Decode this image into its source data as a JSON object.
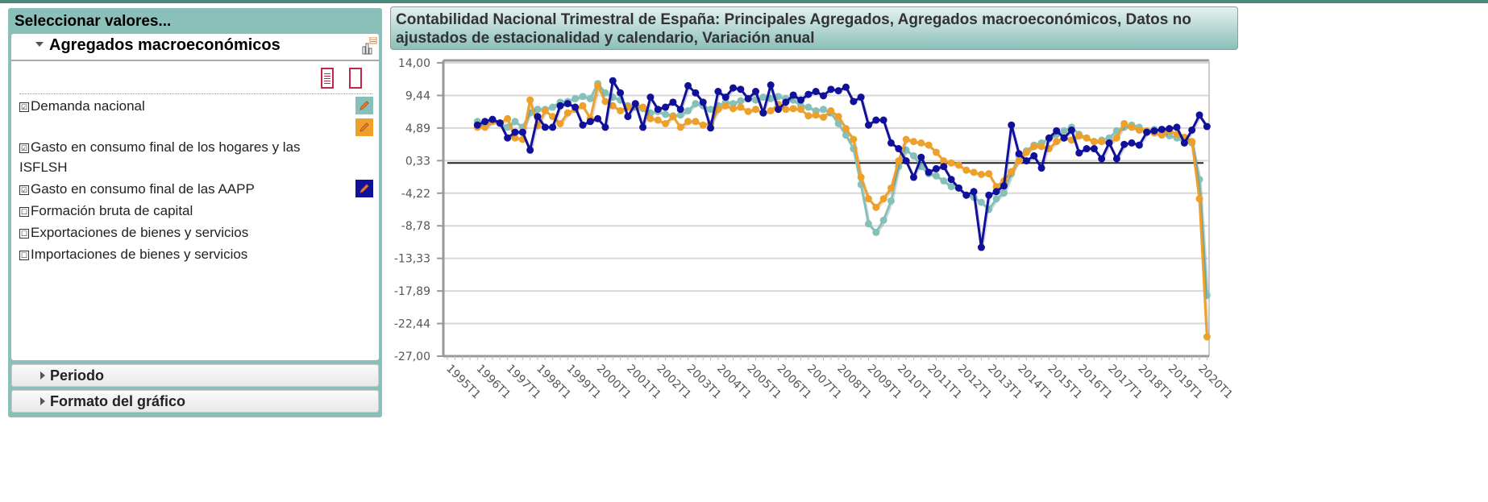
{
  "left_panel": {
    "title": "Seleccionar valores...",
    "accordion_label": "Agregados macroeconómicos",
    "items": [
      {
        "label": "Demanda nacional",
        "checked": true,
        "check": "☑",
        "color": "#86c0ba"
      },
      {
        "label": "Gasto en consumo final de los hogares y las ISFLSH",
        "checked": true,
        "check": "☑",
        "color": "#eda12b"
      },
      {
        "label": "Gasto en consumo final de las AAPP",
        "checked": true,
        "check": "☑",
        "color": "#10109a"
      },
      {
        "label": "Formación bruta de capital",
        "checked": false,
        "check": "☐"
      },
      {
        "label": "Exportaciones de bienes y servicios",
        "checked": false,
        "check": "☐"
      },
      {
        "label": "Importaciones de bienes y servicios",
        "checked": false,
        "check": "☐"
      }
    ],
    "sections": [
      {
        "label": "Periodo"
      },
      {
        "label": "Formato del gráfico"
      }
    ]
  },
  "chart_data": {
    "type": "line",
    "title": "Contabilidad Nacional Trimestral de España: Principales Agregados, Agregados macroeconómicos, Datos no ajustados de estacionalidad y calendario, Variación anual",
    "ylim": [
      -27.0,
      14.0
    ],
    "yticks": [
      "14,00",
      "9,44",
      "4,89",
      "0,33",
      "-4,22",
      "-8,78",
      "-13,33",
      "-17,89",
      "-22,44",
      "-27,00"
    ],
    "ytick_values": [
      14.0,
      9.44,
      4.89,
      0.33,
      -4.22,
      -8.78,
      -13.33,
      -17.89,
      -22.44,
      -27.0
    ],
    "xticks": [
      "1995T1",
      "1996T1",
      "1997T1",
      "1998T1",
      "1999T1",
      "2000T1",
      "2001T1",
      "2002T1",
      "2003T1",
      "2004T1",
      "2005T1",
      "2006T1",
      "2007T1",
      "2008T1",
      "2009T1",
      "2010T1",
      "2011T1",
      "2012T1",
      "2013T1",
      "2014T1",
      "2015T1",
      "2016T1",
      "2017T1",
      "2018T1",
      "2019T1",
      "2020T1"
    ],
    "x_start": "1996T1",
    "x_end": "2020T2",
    "reference_line": 0,
    "grid": true,
    "series": [
      {
        "name": "Demanda nacional",
        "color": "#86c0ba",
        "values": [
          5.8,
          5.2,
          5.8,
          5.5,
          5.0,
          5.8,
          5.0,
          7.0,
          7.5,
          7.5,
          7.8,
          8.5,
          8.6,
          9.0,
          9.3,
          9.0,
          11.1,
          9.8,
          9.2,
          8.8,
          8.0,
          7.8,
          7.6,
          7.0,
          7.2,
          6.8,
          6.6,
          6.7,
          7.3,
          8.3,
          8.0,
          7.5,
          8.0,
          8.5,
          8.3,
          8.7,
          9.0,
          8.8,
          9.2,
          9.0,
          9.3,
          9.0,
          8.8,
          8.0,
          7.8,
          7.3,
          7.5,
          7.0,
          5.5,
          3.9,
          2.0,
          -3.0,
          -8.5,
          -9.7,
          -8.0,
          -5.3,
          -0.5,
          1.8,
          1.0,
          -0.5,
          -1.5,
          -1.8,
          -2.5,
          -3.3,
          -3.5,
          -4.5,
          -4.8,
          -5.5,
          -6.5,
          -5.0,
          -4.2,
          -1.5,
          1.0,
          1.7,
          2.5,
          2.8,
          3.4,
          4.0,
          4.5,
          5.0,
          4.0,
          3.5,
          3.0,
          3.2,
          3.5,
          4.5,
          5.0,
          5.3,
          5.0,
          4.5,
          4.7,
          4.5,
          3.8,
          3.5,
          3.0,
          2.8,
          -2.3,
          -18.5
        ]
      },
      {
        "name": "Gasto en consumo final de los hogares y las ISFLSH",
        "color": "#eda12b",
        "values": [
          5.0,
          5.0,
          5.8,
          5.6,
          6.2,
          3.5,
          3.3,
          8.8,
          5.2,
          7.3,
          6.5,
          5.5,
          7.0,
          7.5,
          8.0,
          6.2,
          10.8,
          8.6,
          8.0,
          7.3,
          7.8,
          8.2,
          7.8,
          6.2,
          6.0,
          5.5,
          6.5,
          5.0,
          5.8,
          5.8,
          5.3,
          5.5,
          7.5,
          8.0,
          7.6,
          7.8,
          7.2,
          7.5,
          7.0,
          7.3,
          8.2,
          7.5,
          7.6,
          7.5,
          6.6,
          6.7,
          6.4,
          7.3,
          6.5,
          4.8,
          3.3,
          -2.0,
          -5.0,
          -6.2,
          -5.0,
          -3.5,
          0.3,
          3.3,
          3.0,
          2.8,
          2.5,
          1.5,
          0.3,
          0.0,
          -0.3,
          -1.0,
          -1.3,
          -1.6,
          -1.5,
          -3.3,
          -2.5,
          -1.2,
          0.3,
          1.5,
          2.3,
          2.3,
          2.0,
          3.0,
          3.5,
          3.2,
          3.8,
          3.5,
          3.0,
          3.0,
          2.8,
          3.5,
          5.5,
          5.0,
          4.6,
          4.5,
          4.2,
          3.9,
          4.5,
          4.0,
          3.6,
          3.0,
          -5.0,
          -24.3
        ]
      },
      {
        "name": "Gasto en consumo final de las AAPP",
        "color": "#10109a",
        "values": [
          5.3,
          5.8,
          6.1,
          5.6,
          3.5,
          4.3,
          4.3,
          1.8,
          6.5,
          5.0,
          5.0,
          8.0,
          8.3,
          7.8,
          5.3,
          5.8,
          6.2,
          5.0,
          11.5,
          9.8,
          6.5,
          8.3,
          5.0,
          9.2,
          7.5,
          7.8,
          8.5,
          7.5,
          10.8,
          9.8,
          8.5,
          4.9,
          10.0,
          9.2,
          10.5,
          10.3,
          9.0,
          10.0,
          7.0,
          10.9,
          7.5,
          8.5,
          9.5,
          8.8,
          9.6,
          10.0,
          9.4,
          10.3,
          10.1,
          10.6,
          8.6,
          9.2,
          5.3,
          6.0,
          6.0,
          2.8,
          2.0,
          0.3,
          -2.0,
          0.8,
          -1.3,
          -0.8,
          -0.5,
          -2.3,
          -3.5,
          -4.5,
          -4.0,
          -11.8,
          -4.5,
          -4.0,
          -3.2,
          5.3,
          1.3,
          0.3,
          1.0,
          -0.7,
          3.5,
          4.5,
          3.5,
          4.6,
          1.4,
          2.0,
          2.0,
          0.6,
          2.8,
          0.6,
          2.6,
          2.8,
          2.5,
          4.3,
          4.5,
          4.7,
          4.8,
          5.0,
          2.8,
          4.6,
          6.7,
          5.1
        ]
      }
    ]
  }
}
